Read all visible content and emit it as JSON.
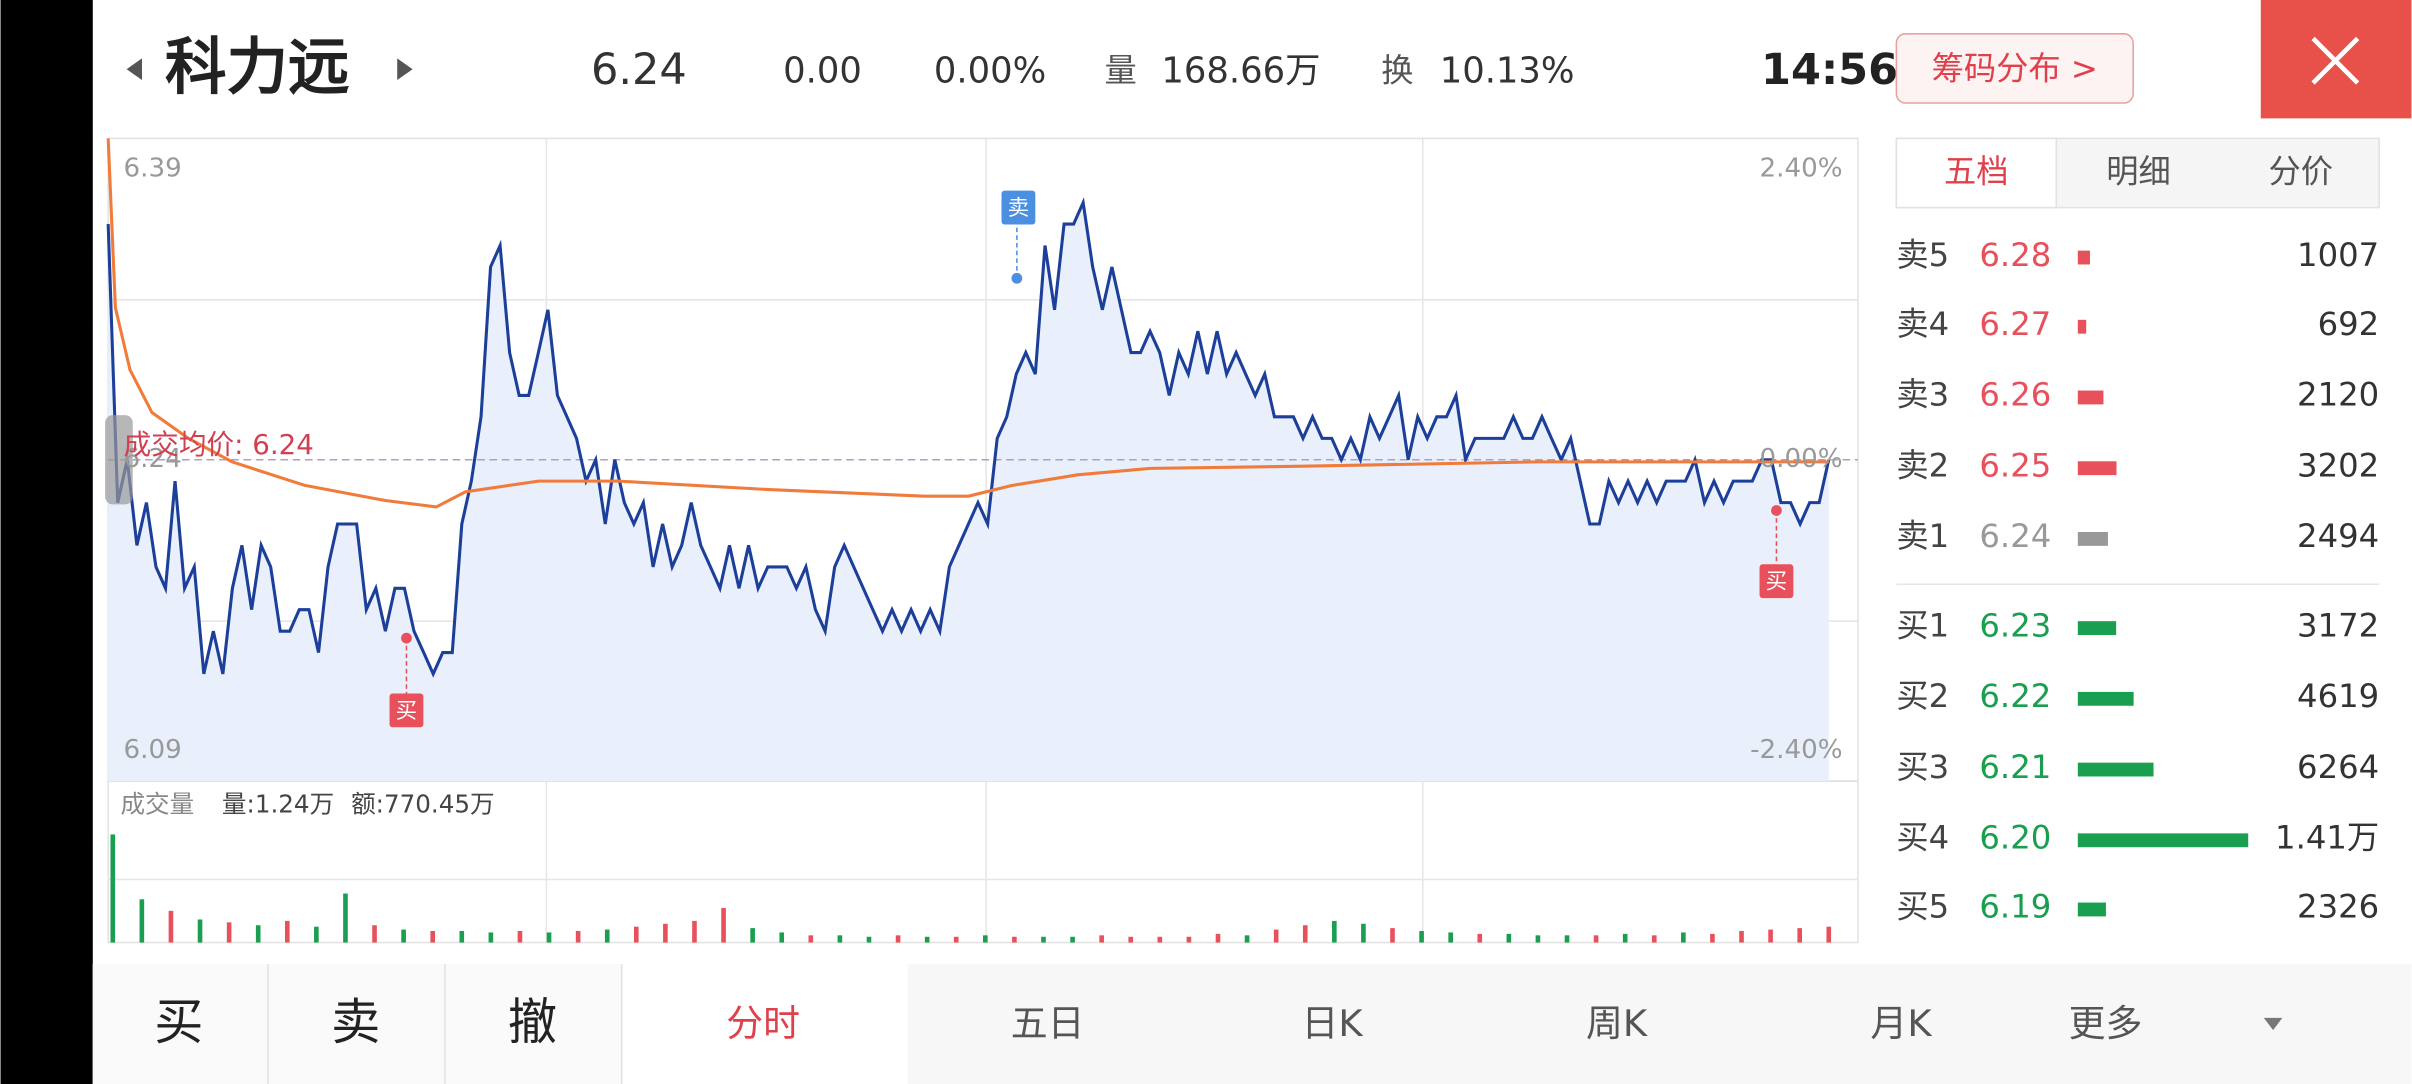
{
  "header": {
    "name": "科力远",
    "price": "6.24",
    "change": "0.00",
    "change_pct": "0.00%",
    "volume_label": "量",
    "volume": "168.66万",
    "turnover_label": "换",
    "turnover": "10.13%",
    "time": "14:56",
    "chip_button": "筹码分布 >"
  },
  "chart_data": {
    "type": "line",
    "avg_label": "成交均价: 6.24",
    "ylim": [
      6.09,
      6.39
    ],
    "yticks": [
      6.39,
      6.24,
      6.09
    ],
    "y2lim": [
      -2.4,
      2.4
    ],
    "y2ticks": [
      {
        "value": 2.4,
        "label": "2.40%"
      },
      {
        "value": 0,
        "label": "0.00%"
      },
      {
        "value": -2.4,
        "label": "-2.40%"
      }
    ],
    "xlim": [
      0,
      240
    ],
    "series": [
      {
        "name": "价格",
        "color": "#1c3f9a",
        "values": [
          6.35,
          6.22,
          6.24,
          6.2,
          6.22,
          6.19,
          6.18,
          6.23,
          6.18,
          6.19,
          6.14,
          6.16,
          6.14,
          6.18,
          6.2,
          6.17,
          6.2,
          6.19,
          6.16,
          6.16,
          6.17,
          6.17,
          6.15,
          6.19,
          6.21,
          6.21,
          6.21,
          6.17,
          6.18,
          6.16,
          6.18,
          6.18,
          6.16,
          6.15,
          6.14,
          6.15,
          6.15,
          6.21,
          6.23,
          6.26,
          6.33,
          6.34,
          6.29,
          6.27,
          6.27,
          6.29,
          6.31,
          6.27,
          6.26,
          6.25,
          6.23,
          6.24,
          6.21,
          6.24,
          6.22,
          6.21,
          6.22,
          6.19,
          6.21,
          6.19,
          6.2,
          6.22,
          6.2,
          6.19,
          6.18,
          6.2,
          6.18,
          6.2,
          6.18,
          6.19,
          6.19,
          6.19,
          6.18,
          6.19,
          6.17,
          6.16,
          6.19,
          6.2,
          6.19,
          6.18,
          6.17,
          6.16,
          6.17,
          6.16,
          6.17,
          6.16,
          6.17,
          6.16,
          6.19,
          6.2,
          6.21,
          6.22,
          6.21,
          6.25,
          6.26,
          6.28,
          6.29,
          6.28,
          6.34,
          6.31,
          6.35,
          6.35,
          6.36,
          6.33,
          6.31,
          6.33,
          6.31,
          6.29,
          6.29,
          6.3,
          6.29,
          6.27,
          6.29,
          6.28,
          6.3,
          6.28,
          6.3,
          6.28,
          6.29,
          6.28,
          6.27,
          6.28,
          6.26,
          6.26,
          6.26,
          6.25,
          6.26,
          6.25,
          6.25,
          6.24,
          6.25,
          6.24,
          6.26,
          6.25,
          6.26,
          6.27,
          6.24,
          6.26,
          6.25,
          6.26,
          6.26,
          6.27,
          6.24,
          6.25,
          6.25,
          6.25,
          6.25,
          6.26,
          6.25,
          6.25,
          6.26,
          6.25,
          6.24,
          6.25,
          6.23,
          6.21,
          6.21,
          6.23,
          6.22,
          6.23,
          6.22,
          6.23,
          6.22,
          6.23,
          6.23,
          6.23,
          6.24,
          6.22,
          6.23,
          6.22,
          6.23,
          6.23,
          6.23,
          6.24,
          6.24,
          6.22,
          6.22,
          6.21,
          6.22,
          6.22,
          6.24
        ]
      },
      {
        "name": "均价",
        "color": "#f07b3a",
        "x": [
          0,
          1,
          3,
          6,
          11,
          17,
          27,
          38,
          45,
          49,
          59,
          70,
          91,
          112,
          118,
          124,
          133,
          143,
          164,
          196,
          236
        ],
        "values": [
          6.39,
          6.311,
          6.282,
          6.262,
          6.25,
          6.239,
          6.228,
          6.221,
          6.218,
          6.225,
          6.23,
          6.23,
          6.226,
          6.223,
          6.223,
          6.228,
          6.233,
          6.236,
          6.237,
          6.239,
          6.239
        ]
      }
    ],
    "annotations": [
      "卖",
      "买",
      "买"
    ]
  },
  "volume_chart": {
    "type": "bar",
    "title": "成交量",
    "volume": "量:1.24万",
    "amount": "额:770.45万",
    "ylim": [
      0,
      8
    ],
    "values": [
      7.5,
      3.0,
      2.2,
      1.6,
      1.4,
      1.2,
      1.5,
      1.1,
      3.4,
      1.2,
      0.9,
      0.8,
      0.8,
      0.7,
      0.8,
      0.7,
      0.8,
      0.9,
      1.1,
      1.3,
      1.5,
      2.4,
      1.0,
      0.7,
      0.5,
      0.5,
      0.4,
      0.5,
      0.4,
      0.4,
      0.5,
      0.4,
      0.4,
      0.4,
      0.5,
      0.4,
      0.4,
      0.4,
      0.6,
      0.5,
      0.9,
      1.2,
      1.5,
      1.3,
      1.0,
      0.8,
      0.7,
      0.6,
      0.6,
      0.5,
      0.5,
      0.5,
      0.6,
      0.5,
      0.7,
      0.6,
      0.8,
      0.9,
      1.0,
      1.1
    ],
    "colors": [
      "#1a9e4f",
      "#1a9e4f",
      "#e8505b",
      "#1a9e4f",
      "#e8505b",
      "#1a9e4f",
      "#e8505b",
      "#1a9e4f",
      "#1a9e4f",
      "#e8505b",
      "#1a9e4f",
      "#e8505b",
      "#1a9e4f",
      "#1a9e4f",
      "#e8505b",
      "#1a9e4f",
      "#e8505b",
      "#1a9e4f",
      "#e8505b",
      "#e8505b",
      "#e8505b",
      "#e8505b",
      "#1a9e4f",
      "#1a9e4f",
      "#e8505b",
      "#1a9e4f",
      "#1a9e4f",
      "#e8505b",
      "#1a9e4f",
      "#e8505b",
      "#1a9e4f",
      "#e8505b",
      "#1a9e4f",
      "#1a9e4f",
      "#e8505b",
      "#e8505b",
      "#e8505b",
      "#e8505b",
      "#e8505b",
      "#1a9e4f",
      "#e8505b",
      "#e8505b",
      "#1a9e4f",
      "#1a9e4f",
      "#e8505b",
      "#1a9e4f",
      "#1a9e4f",
      "#e8505b",
      "#1a9e4f",
      "#1a9e4f",
      "#1a9e4f",
      "#e8505b",
      "#1a9e4f",
      "#e8505b",
      "#1a9e4f",
      "#e8505b",
      "#e8505b",
      "#e8505b",
      "#e8505b",
      "#e8505b"
    ]
  },
  "order_book": {
    "tabs": [
      "五档",
      "明细",
      "分价"
    ],
    "rows": [
      {
        "label": "卖5",
        "price": "6.28",
        "volume": 1007,
        "color": "#e8505b"
      },
      {
        "label": "卖4",
        "price": "6.27",
        "volume": 692,
        "color": "#e8505b"
      },
      {
        "label": "卖3",
        "price": "6.26",
        "volume": 2120,
        "color": "#e8505b"
      },
      {
        "label": "卖2",
        "price": "6.25",
        "volume": 3202,
        "color": "#e8505b"
      },
      {
        "label": "卖1",
        "price": "6.24",
        "volume": 2494,
        "color": "#999999"
      },
      {
        "label": "买1",
        "price": "6.23",
        "volume": 3172,
        "color": "#1a9e4f"
      },
      {
        "label": "买2",
        "price": "6.22",
        "volume": 4619,
        "color": "#1a9e4f"
      },
      {
        "label": "买3",
        "price": "6.21",
        "volume": 6264,
        "color": "#1a9e4f"
      },
      {
        "label": "买4",
        "price": "6.20",
        "volume": 14100,
        "volume_label": "1.41万",
        "color": "#1a9e4f"
      },
      {
        "label": "买5",
        "price": "6.19",
        "volume": 2326,
        "color": "#1a9e4f"
      }
    ]
  },
  "toolbar": {
    "actions": [
      "买",
      "卖",
      "撤"
    ],
    "tabs": [
      "分时",
      "五日",
      "日K",
      "周K",
      "月K",
      "更多"
    ]
  }
}
